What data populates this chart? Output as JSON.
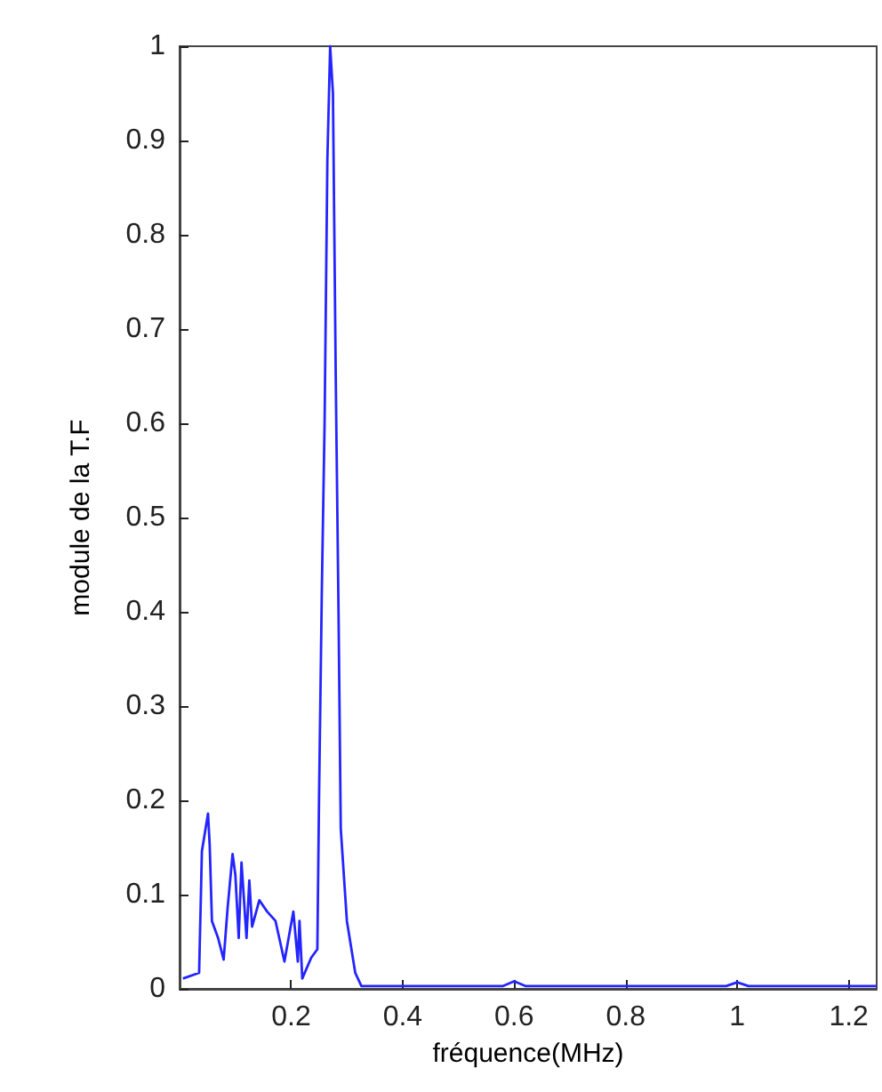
{
  "chart_data": {
    "type": "line",
    "xlabel": "fréquence(MHz)",
    "ylabel": "module de la T.F",
    "xlim": [
      0,
      1.25
    ],
    "xticks": [
      0.2,
      0.4,
      0.6,
      0.8,
      1,
      1.2
    ],
    "ylim": [
      0,
      1
    ],
    "yticks": [
      0,
      0.1,
      0.2,
      0.3,
      0.4,
      0.5,
      0.6,
      0.7,
      0.8,
      0.9,
      1
    ],
    "grid": false,
    "series": [
      {
        "color": "#2424ff",
        "x": [
          0.006,
          0.035,
          0.04,
          0.051,
          0.054,
          0.058,
          0.069,
          0.079,
          0.086,
          0.095,
          0.1,
          0.106,
          0.111,
          0.12,
          0.125,
          0.13,
          0.143,
          0.157,
          0.172,
          0.188,
          0.204,
          0.212,
          0.215,
          0.22,
          0.236,
          0.247,
          0.25,
          0.255,
          0.26,
          0.265,
          0.27,
          0.275,
          0.28,
          0.285,
          0.289,
          0.3,
          0.315,
          0.326,
          0.4,
          0.5,
          0.58,
          0.6,
          0.62,
          0.8,
          0.98,
          1.0,
          1.02,
          1.25
        ],
        "values": [
          0.011,
          0.017,
          0.146,
          0.186,
          0.152,
          0.072,
          0.054,
          0.031,
          0.085,
          0.143,
          0.121,
          0.054,
          0.134,
          0.054,
          0.115,
          0.066,
          0.094,
          0.082,
          0.072,
          0.029,
          0.082,
          0.029,
          0.072,
          0.011,
          0.033,
          0.042,
          0.2,
          0.42,
          0.6,
          0.88,
          1,
          0.95,
          0.65,
          0.4,
          0.17,
          0.072,
          0.017,
          0.003,
          0.003,
          0.003,
          0.003,
          0.008,
          0.003,
          0.003,
          0.003,
          0.007,
          0.003,
          0.003
        ]
      }
    ]
  }
}
